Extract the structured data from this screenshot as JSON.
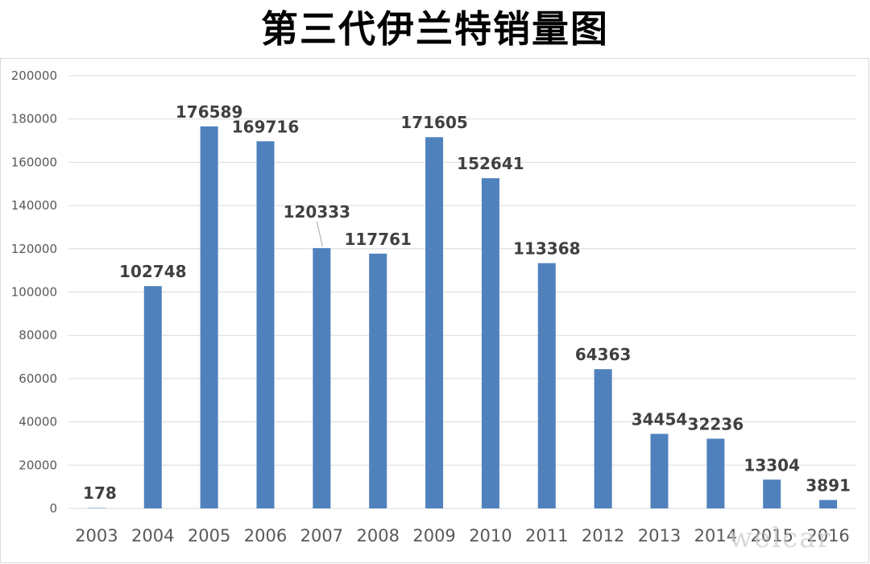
{
  "title": "第三代伊兰特销量图",
  "watermark": "welcar",
  "colors": {
    "bar": "#4f81bd",
    "grid": "#d9d9d9",
    "label": "#404040",
    "tick": "#595959"
  },
  "chart_data": {
    "type": "bar",
    "title": "第三代伊兰特销量图",
    "categories": [
      "2003",
      "2004",
      "2005",
      "2006",
      "2007",
      "2008",
      "2009",
      "2010",
      "2011",
      "2012",
      "2013",
      "2014",
      "2015",
      "2016"
    ],
    "values": [
      178,
      102748,
      176589,
      169716,
      120333,
      117761,
      171605,
      152641,
      113368,
      64363,
      34454,
      32236,
      13304,
      3891
    ],
    "data_labels": [
      "178",
      "102748",
      "176589",
      "169716",
      "120333",
      "117761",
      "171605",
      "152641",
      "113368",
      "64363",
      "34454",
      "32236",
      "13304",
      "3891"
    ],
    "y_ticks": [
      "0",
      "20000",
      "40000",
      "60000",
      "80000",
      "100000",
      "120000",
      "140000",
      "160000",
      "180000",
      "200000"
    ],
    "ylim": [
      0,
      200000
    ],
    "grid": true,
    "legend": "none"
  }
}
